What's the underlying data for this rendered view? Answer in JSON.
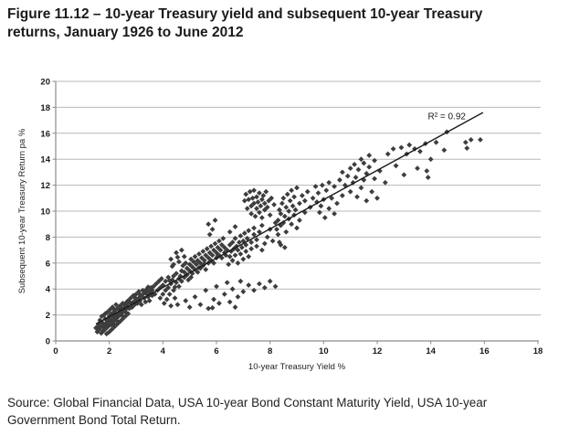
{
  "figure": {
    "title_line1": "Figure 11.12 – 10-year Treasury yield and subsequent 10-year Treasury",
    "title_line2": "returns, January 1926 to June 2012",
    "source": "Source: Global Financial Data, USA 10-year Bond Constant Maturity Yield, USA 10-year Government Bond Total Return."
  },
  "chart_data": {
    "type": "scatter",
    "title": "Figure 11.12 – 10-year Treasury yield and subsequent 10-year Treasury returns, January 1926 to June 2012",
    "xlabel": "10-year Treasury Yield %",
    "ylabel": "Subsequent 10-year  Treasury Return pa %",
    "xlim": [
      0,
      18
    ],
    "ylim": [
      0,
      20
    ],
    "xticks": [
      0,
      2,
      4,
      6,
      8,
      10,
      12,
      14,
      16,
      18
    ],
    "yticks": [
      0,
      2,
      4,
      6,
      8,
      10,
      12,
      14,
      16,
      18,
      20
    ],
    "grid": "horizontal",
    "legend": "none",
    "marker": "diamond",
    "colors": {
      "marker": "#3d3d3d",
      "gridline": "#b8b8b8",
      "axis": "#8c8c8c",
      "trend": "#1a1a1a"
    },
    "trendline": {
      "x1": 1.5,
      "y1": 1.3,
      "x2": 15.95,
      "y2": 17.6
    },
    "annotation": {
      "text": "R² = 0.92",
      "x": 14.6,
      "y": 17.3
    },
    "points": [
      [
        1.5,
        1.0
      ],
      [
        1.55,
        0.7
      ],
      [
        1.6,
        1.3
      ],
      [
        1.62,
        0.9
      ],
      [
        1.65,
        1.6
      ],
      [
        1.7,
        0.6
      ],
      [
        1.7,
        1.1
      ],
      [
        1.72,
        1.9
      ],
      [
        1.75,
        1.4
      ],
      [
        1.8,
        0.8
      ],
      [
        1.8,
        2.0
      ],
      [
        1.82,
        1.2
      ],
      [
        1.85,
        1.7
      ],
      [
        1.9,
        0.55
      ],
      [
        1.9,
        1.0
      ],
      [
        1.92,
        2.2
      ],
      [
        1.95,
        1.5
      ],
      [
        2.0,
        0.7
      ],
      [
        2.0,
        1.2
      ],
      [
        2.0,
        1.9
      ],
      [
        2.02,
        2.4
      ],
      [
        2.05,
        1.6
      ],
      [
        2.1,
        0.9
      ],
      [
        2.1,
        1.4
      ],
      [
        2.1,
        2.1
      ],
      [
        2.12,
        2.6
      ],
      [
        2.15,
        1.8
      ],
      [
        2.2,
        1.1
      ],
      [
        2.2,
        1.6
      ],
      [
        2.2,
        2.3
      ],
      [
        2.25,
        2.0
      ],
      [
        2.25,
        2.8
      ],
      [
        2.3,
        1.3
      ],
      [
        2.3,
        1.8
      ],
      [
        2.3,
        2.5
      ],
      [
        2.35,
        2.1
      ],
      [
        2.4,
        1.5
      ],
      [
        2.4,
        2.0
      ],
      [
        2.4,
        2.7
      ],
      [
        2.45,
        2.3
      ],
      [
        2.5,
        1.7
      ],
      [
        2.5,
        2.2
      ],
      [
        2.5,
        2.9
      ],
      [
        2.55,
        2.5
      ],
      [
        2.6,
        1.9
      ],
      [
        2.6,
        2.4
      ],
      [
        2.65,
        3.0
      ],
      [
        2.7,
        2.1
      ],
      [
        2.7,
        2.6
      ],
      [
        1.68,
        1.45
      ],
      [
        1.78,
        1.05
      ],
      [
        1.88,
        1.35
      ],
      [
        1.98,
        1.75
      ],
      [
        2.08,
        1.25
      ],
      [
        2.18,
        2.45
      ],
      [
        2.28,
        1.55
      ],
      [
        2.38,
        2.35
      ],
      [
        2.48,
        1.95
      ],
      [
        2.58,
        2.75
      ],
      [
        1.85,
        2.1
      ],
      [
        1.75,
        0.75
      ],
      [
        2.05,
        2.05
      ],
      [
        2.33,
        1.95
      ],
      [
        2.15,
        1.35
      ],
      [
        1.95,
        1.25
      ],
      [
        2.45,
        2.55
      ],
      [
        2.62,
        2.2
      ],
      [
        1.58,
        1.15
      ],
      [
        2.52,
        2.45
      ],
      [
        1.92,
        1.55
      ],
      [
        2.22,
        1.85
      ],
      [
        2.65,
        2.8
      ],
      [
        2.7,
        3.1
      ],
      [
        2.75,
        2.5
      ],
      [
        2.8,
        2.9
      ],
      [
        2.8,
        3.3
      ],
      [
        2.85,
        2.6
      ],
      [
        2.9,
        3.0
      ],
      [
        2.9,
        3.5
      ],
      [
        2.95,
        2.8
      ],
      [
        3.0,
        3.2
      ],
      [
        3.0,
        3.6
      ],
      [
        3.05,
        2.9
      ],
      [
        3.1,
        3.3
      ],
      [
        3.1,
        3.8
      ],
      [
        3.15,
        3.1
      ],
      [
        3.2,
        3.5
      ],
      [
        3.2,
        2.8
      ],
      [
        3.25,
        3.9
      ],
      [
        3.3,
        3.3
      ],
      [
        3.3,
        3.7
      ],
      [
        3.35,
        3.0
      ],
      [
        3.4,
        3.6
      ],
      [
        3.4,
        4.0
      ],
      [
        3.45,
        3.4
      ],
      [
        3.5,
        3.8
      ],
      [
        3.5,
        3.1
      ],
      [
        3.55,
        4.1
      ],
      [
        3.6,
        3.5
      ],
      [
        3.6,
        3.9
      ],
      [
        2.75,
        3.0
      ],
      [
        2.95,
        3.35
      ],
      [
        3.15,
        3.55
      ],
      [
        3.35,
        3.85
      ],
      [
        3.55,
        3.65
      ],
      [
        3.45,
        4.15
      ],
      [
        3.65,
        4.2
      ],
      [
        3.7,
        3.6
      ],
      [
        3.75,
        4.4
      ],
      [
        3.8,
        3.9
      ],
      [
        3.85,
        4.6
      ],
      [
        3.9,
        3.3
      ],
      [
        3.9,
        4.1
      ],
      [
        3.95,
        4.8
      ],
      [
        4.0,
        3.6
      ],
      [
        4.0,
        4.3
      ],
      [
        4.05,
        2.9
      ],
      [
        4.1,
        3.9
      ],
      [
        4.1,
        4.6
      ],
      [
        4.15,
        3.2
      ],
      [
        4.2,
        4.1
      ],
      [
        4.2,
        4.9
      ],
      [
        4.25,
        3.6
      ],
      [
        4.3,
        4.4
      ],
      [
        4.3,
        2.7
      ],
      [
        4.35,
        4.7
      ],
      [
        4.4,
        3.9
      ],
      [
        4.4,
        5.0
      ],
      [
        4.45,
        3.3
      ],
      [
        4.5,
        4.5
      ],
      [
        4.5,
        5.2
      ],
      [
        4.55,
        2.8
      ],
      [
        4.6,
        4.2
      ],
      [
        4.6,
        4.8
      ],
      [
        4.45,
        4.15
      ],
      [
        4.25,
        4.65
      ],
      [
        4.3,
        6.3
      ],
      [
        4.5,
        6.8
      ],
      [
        4.6,
        6.1
      ],
      [
        4.7,
        7.0
      ],
      [
        4.4,
        5.9
      ],
      [
        4.8,
        6.5
      ],
      [
        4.55,
        6.45
      ],
      [
        4.35,
        5.75
      ],
      [
        4.65,
        5.0
      ],
      [
        4.7,
        4.6
      ],
      [
        4.7,
        5.4
      ],
      [
        4.75,
        5.8
      ],
      [
        4.8,
        4.9
      ],
      [
        4.8,
        5.3
      ],
      [
        4.85,
        6.0
      ],
      [
        4.9,
        5.1
      ],
      [
        4.9,
        5.6
      ],
      [
        4.95,
        4.7
      ],
      [
        5.0,
        5.4
      ],
      [
        5.0,
        5.9
      ],
      [
        5.05,
        6.3
      ],
      [
        5.1,
        5.2
      ],
      [
        5.1,
        5.7
      ],
      [
        5.15,
        6.1
      ],
      [
        5.2,
        5.5
      ],
      [
        5.2,
        6.5
      ],
      [
        5.25,
        5.9
      ],
      [
        5.3,
        5.3
      ],
      [
        5.3,
        6.2
      ],
      [
        5.35,
        6.7
      ],
      [
        5.4,
        5.6
      ],
      [
        5.4,
        6.0
      ],
      [
        5.45,
        6.4
      ],
      [
        5.5,
        5.8
      ],
      [
        5.5,
        6.9
      ],
      [
        5.55,
        6.2
      ],
      [
        5.6,
        5.5
      ],
      [
        5.6,
        6.6
      ],
      [
        5.65,
        7.1
      ],
      [
        5.7,
        6.0
      ],
      [
        5.7,
        6.4
      ],
      [
        5.75,
        6.8
      ],
      [
        5.8,
        6.2
      ],
      [
        5.8,
        7.3
      ],
      [
        5.85,
        6.6
      ],
      [
        5.9,
        6.0
      ],
      [
        5.9,
        7.0
      ],
      [
        5.95,
        7.5
      ],
      [
        6.0,
        6.4
      ],
      [
        6.0,
        6.8
      ],
      [
        6.05,
        7.2
      ],
      [
        6.1,
        6.6
      ],
      [
        6.1,
        7.7
      ],
      [
        6.15,
        7.0
      ],
      [
        6.2,
        6.4
      ],
      [
        6.2,
        7.4
      ],
      [
        6.25,
        7.9
      ],
      [
        6.3,
        6.8
      ],
      [
        6.3,
        7.2
      ],
      [
        5.05,
        4.9
      ],
      [
        5.55,
        5.95
      ],
      [
        6.05,
        6.55
      ],
      [
        5.35,
        5.65
      ],
      [
        5.7,
        9.0
      ],
      [
        5.85,
        8.6
      ],
      [
        5.95,
        9.3
      ],
      [
        5.75,
        8.2
      ],
      [
        6.5,
        8.4
      ],
      [
        6.7,
        8.8
      ],
      [
        4.85,
        3.1
      ],
      [
        5.0,
        2.6
      ],
      [
        5.2,
        3.4
      ],
      [
        5.4,
        2.8
      ],
      [
        5.6,
        3.9
      ],
      [
        5.7,
        2.5
      ],
      [
        5.9,
        3.2
      ],
      [
        6.0,
        4.2
      ],
      [
        6.1,
        2.9
      ],
      [
        6.3,
        3.6
      ],
      [
        6.4,
        4.5
      ],
      [
        6.5,
        3.0
      ],
      [
        6.6,
        4.0
      ],
      [
        6.8,
        3.4
      ],
      [
        6.9,
        4.6
      ],
      [
        7.0,
        3.8
      ],
      [
        7.2,
        4.3
      ],
      [
        7.4,
        3.9
      ],
      [
        7.6,
        4.4
      ],
      [
        7.8,
        4.1
      ],
      [
        8.0,
        4.6
      ],
      [
        8.2,
        4.2
      ],
      [
        6.7,
        2.6
      ],
      [
        5.85,
        2.55
      ],
      [
        6.35,
        6.6
      ],
      [
        6.4,
        7.0
      ],
      [
        6.45,
        5.9
      ],
      [
        6.5,
        6.5
      ],
      [
        6.5,
        7.4
      ],
      [
        6.55,
        6.9
      ],
      [
        6.6,
        6.2
      ],
      [
        6.6,
        7.6
      ],
      [
        6.65,
        7.1
      ],
      [
        6.7,
        6.6
      ],
      [
        6.7,
        7.9
      ],
      [
        6.75,
        7.3
      ],
      [
        6.8,
        6.0
      ],
      [
        6.8,
        7.0
      ],
      [
        6.85,
        7.6
      ],
      [
        6.9,
        6.7
      ],
      [
        6.9,
        8.1
      ],
      [
        6.95,
        7.2
      ],
      [
        7.0,
        6.3
      ],
      [
        7.0,
        7.7
      ],
      [
        7.05,
        8.3
      ],
      [
        7.1,
        6.9
      ],
      [
        7.1,
        7.4
      ],
      [
        7.15,
        7.9
      ],
      [
        7.2,
        6.5
      ],
      [
        7.2,
        8.5
      ],
      [
        7.3,
        7.1
      ],
      [
        7.3,
        7.6
      ],
      [
        7.4,
        8.2
      ],
      [
        7.4,
        8.7
      ],
      [
        7.5,
        7.3
      ],
      [
        7.5,
        7.8
      ],
      [
        7.6,
        8.4
      ],
      [
        7.7,
        7.0
      ],
      [
        7.7,
        8.9
      ],
      [
        7.8,
        7.5
      ],
      [
        7.9,
        8.0
      ],
      [
        8.0,
        8.6
      ],
      [
        8.1,
        7.7
      ],
      [
        8.2,
        9.1
      ],
      [
        8.3,
        8.2
      ],
      [
        7.05,
        10.8
      ],
      [
        7.1,
        11.3
      ],
      [
        7.15,
        10.2
      ],
      [
        7.2,
        10.9
      ],
      [
        7.25,
        11.5
      ],
      [
        7.3,
        10.4
      ],
      [
        7.3,
        9.8
      ],
      [
        7.35,
        11.0
      ],
      [
        7.4,
        10.6
      ],
      [
        7.4,
        11.6
      ],
      [
        7.45,
        9.6
      ],
      [
        7.5,
        10.2
      ],
      [
        7.5,
        11.1
      ],
      [
        7.55,
        10.7
      ],
      [
        7.6,
        9.9
      ],
      [
        7.6,
        11.4
      ],
      [
        7.65,
        10.4
      ],
      [
        7.7,
        10.9
      ],
      [
        7.7,
        9.5
      ],
      [
        7.75,
        11.2
      ],
      [
        7.8,
        10.1
      ],
      [
        7.8,
        10.6
      ],
      [
        7.85,
        11.5
      ],
      [
        7.9,
        10.3
      ],
      [
        7.95,
        10.8
      ],
      [
        8.0,
        9.7
      ],
      [
        8.05,
        11.0
      ],
      [
        8.15,
        10.5
      ],
      [
        8.25,
        8.6
      ],
      [
        8.3,
        9.3
      ],
      [
        8.35,
        10.1
      ],
      [
        8.4,
        8.9
      ],
      [
        8.4,
        9.8
      ],
      [
        8.45,
        10.6
      ],
      [
        8.5,
        9.1
      ],
      [
        8.5,
        11.0
      ],
      [
        8.55,
        9.6
      ],
      [
        8.6,
        8.4
      ],
      [
        8.6,
        10.3
      ],
      [
        8.65,
        11.3
      ],
      [
        8.7,
        9.4
      ],
      [
        8.7,
        10.0
      ],
      [
        8.75,
        10.8
      ],
      [
        8.8,
        9.0
      ],
      [
        8.8,
        11.6
      ],
      [
        8.85,
        10.4
      ],
      [
        8.9,
        9.7
      ],
      [
        8.9,
        11.1
      ],
      [
        8.95,
        10.1
      ],
      [
        9.0,
        8.7
      ],
      [
        9.0,
        11.8
      ],
      [
        9.1,
        10.6
      ],
      [
        9.1,
        9.3
      ],
      [
        9.2,
        11.2
      ],
      [
        9.3,
        9.9
      ],
      [
        9.3,
        10.8
      ],
      [
        9.4,
        11.5
      ],
      [
        9.5,
        10.3
      ],
      [
        9.6,
        11.0
      ],
      [
        9.7,
        11.9
      ],
      [
        8.35,
        7.6
      ],
      [
        8.55,
        7.2
      ],
      [
        8.4,
        7.4
      ],
      [
        9.75,
        10.7
      ],
      [
        9.8,
        11.4
      ],
      [
        9.85,
        9.9
      ],
      [
        9.9,
        10.4
      ],
      [
        9.95,
        12.0
      ],
      [
        10.0,
        10.9
      ],
      [
        10.05,
        9.5
      ],
      [
        10.1,
        11.6
      ],
      [
        10.2,
        10.2
      ],
      [
        10.2,
        12.2
      ],
      [
        10.3,
        11.0
      ],
      [
        10.4,
        9.8
      ],
      [
        10.4,
        11.9
      ],
      [
        10.5,
        10.6
      ],
      [
        10.6,
        12.4
      ],
      [
        10.7,
        11.2
      ],
      [
        10.7,
        13.0
      ],
      [
        10.8,
        12.0
      ],
      [
        10.9,
        12.7
      ],
      [
        11.0,
        11.5
      ],
      [
        11.0,
        13.3
      ],
      [
        11.1,
        12.2
      ],
      [
        11.15,
        13.6
      ],
      [
        11.2,
        12.6
      ],
      [
        11.25,
        11.1
      ],
      [
        11.3,
        13.2
      ],
      [
        11.4,
        11.8
      ],
      [
        11.4,
        14.0
      ],
      [
        11.5,
        12.4
      ],
      [
        11.5,
        13.7
      ],
      [
        11.6,
        10.8
      ],
      [
        11.6,
        12.9
      ],
      [
        11.7,
        13.4
      ],
      [
        11.7,
        14.3
      ],
      [
        11.8,
        11.5
      ],
      [
        11.9,
        12.5
      ],
      [
        11.9,
        13.9
      ],
      [
        12.0,
        11.0
      ],
      [
        12.1,
        13.1
      ],
      [
        12.3,
        12.2
      ],
      [
        12.4,
        14.4
      ],
      [
        12.6,
        14.8
      ],
      [
        12.7,
        13.5
      ],
      [
        12.9,
        14.9
      ],
      [
        13.0,
        12.8
      ],
      [
        13.1,
        14.4
      ],
      [
        13.2,
        15.1
      ],
      [
        13.4,
        14.8
      ],
      [
        13.5,
        13.3
      ],
      [
        13.6,
        14.6
      ],
      [
        13.8,
        15.2
      ],
      [
        14.0,
        14.0
      ],
      [
        14.2,
        15.3
      ],
      [
        14.5,
        14.7
      ],
      [
        14.6,
        16.1
      ],
      [
        13.9,
        12.6
      ],
      [
        13.85,
        13.1
      ],
      [
        15.3,
        15.3
      ],
      [
        15.5,
        15.5
      ],
      [
        15.85,
        15.5
      ],
      [
        15.35,
        14.85
      ]
    ]
  }
}
